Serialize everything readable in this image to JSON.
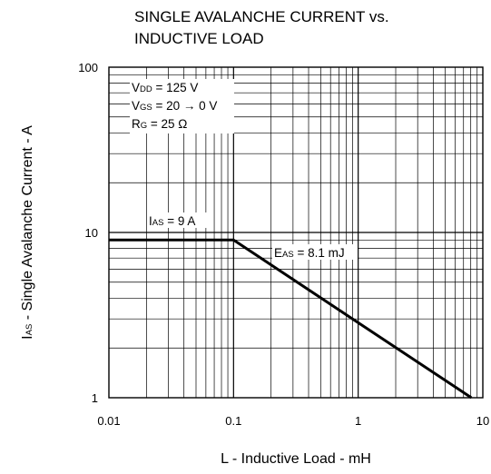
{
  "chart_data": {
    "type": "line",
    "title_lines": [
      "SINGLE AVALANCHE CURRENT vs.",
      "INDUCTIVE LOAD"
    ],
    "xlabel": "L - Inductive Load - mH",
    "ylabel": {
      "main": "I",
      "sub": "AS",
      "rest": " - Single Avalanche Current - A"
    },
    "x_scale": "log",
    "y_scale": "log",
    "xlim": [
      0.01,
      10
    ],
    "ylim": [
      1,
      100
    ],
    "x_ticks": [
      "0.01",
      "0.1",
      "1",
      "10"
    ],
    "y_ticks": [
      "100",
      "10",
      "1"
    ],
    "grid": true,
    "conditions": [
      {
        "main": "V",
        "sub": "DD",
        "rest": " = 125 V"
      },
      {
        "main": "V",
        "sub": "GS",
        "rest": " = 20 → 0 V"
      },
      {
        "main": "R",
        "sub": "G",
        "rest": " = 25 Ω"
      }
    ],
    "annotations": [
      {
        "main": "I",
        "sub": "AS",
        "rest": " = 9 A"
      },
      {
        "main": "E",
        "sub": "AS",
        "rest": " = 8.1 mJ"
      }
    ],
    "series": [
      {
        "x": [
          0.01,
          0.1,
          8.1
        ],
        "y": [
          9,
          9,
          1
        ]
      }
    ]
  }
}
